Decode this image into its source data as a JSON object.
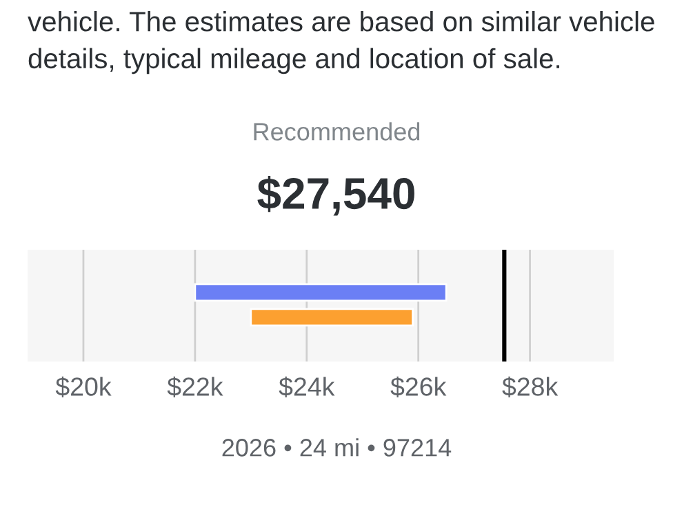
{
  "chart_data": {
    "type": "bar",
    "orientation": "horizontal",
    "title": "Recommended",
    "subtitle": "$27,540",
    "annotations": [
      "vehicle. The estimates are based on similar vehicle details, typical mileage and location of sale.",
      "2026 • 24 mi • 97214"
    ],
    "categories": [
      null,
      null
    ],
    "base": [
      22.0,
      23.0
    ],
    "values": [
      4.5,
      2.9
    ],
    "colors": [
      "#6b7ff5",
      "#fca030"
    ],
    "xlim": [
      19.0,
      29.5
    ],
    "xticks": [
      {
        "value": 20,
        "label": "$20k"
      },
      {
        "value": 22,
        "label": "$22k"
      },
      {
        "value": 24,
        "label": "$24k"
      },
      {
        "value": 26,
        "label": "$26k"
      },
      {
        "value": 28,
        "label": "$28k"
      }
    ],
    "ref_lines": [
      {
        "axis": "x",
        "value": 27.54,
        "label": null,
        "color": "#000000"
      }
    ],
    "grid": "x",
    "tick_labels": "x",
    "legend": false
  }
}
